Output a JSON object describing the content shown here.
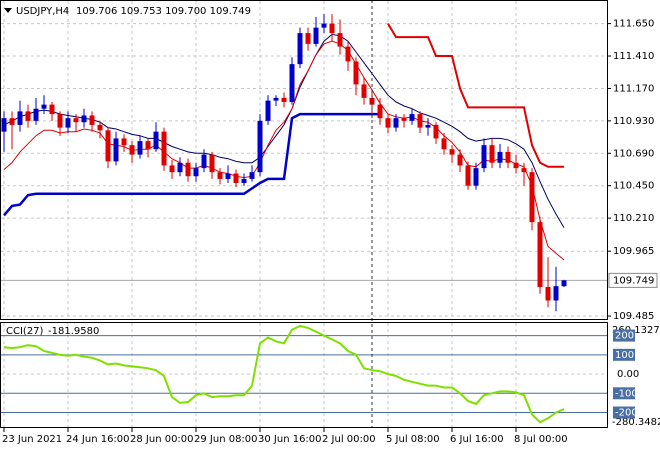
{
  "chart_data": {
    "type": "candlestick",
    "title": "USDJPY,H4",
    "ohlc_text": "109.706 109.753 109.700 109.749",
    "up_color": "#0000cc",
    "down_color": "#e00000",
    "grid": true,
    "categories": [
      "23 Jun 2021",
      null,
      null,
      null,
      null,
      null,
      null,
      null,
      "24 Jun 16:00",
      null,
      null,
      null,
      null,
      null,
      null,
      null,
      "28 Jun 00:00",
      null,
      null,
      null,
      null,
      null,
      null,
      null,
      "29 Jun 08:00",
      null,
      null,
      null,
      null,
      null,
      null,
      null,
      "30 Jun 16:00",
      null,
      null,
      null,
      null,
      null,
      null,
      null,
      "2 Jul 00:00",
      null,
      null,
      null,
      null,
      null,
      null,
      null,
      "5 Jul 08:00",
      null,
      null,
      null,
      null,
      null,
      null,
      null,
      "6 Jul 16:00",
      null,
      null,
      null,
      null,
      null,
      null,
      null,
      "8 Jul 00:00",
      null,
      null,
      null,
      null,
      null,
      null
    ],
    "ohlc": [
      [
        110.85,
        111.0,
        110.7,
        110.95
      ],
      [
        110.95,
        111.0,
        110.72,
        110.9
      ],
      [
        110.9,
        111.08,
        110.85,
        111.0
      ],
      [
        111.0,
        111.05,
        110.88,
        110.93
      ],
      [
        110.93,
        111.1,
        110.9,
        111.02
      ],
      [
        111.02,
        111.12,
        110.98,
        111.05
      ],
      [
        111.05,
        111.07,
        110.93,
        110.98
      ],
      [
        110.98,
        111.0,
        110.82,
        110.88
      ],
      [
        110.88,
        111.0,
        110.84,
        110.95
      ],
      [
        110.95,
        110.98,
        110.85,
        110.92
      ],
      [
        110.92,
        111.02,
        110.88,
        110.97
      ],
      [
        110.97,
        111.0,
        110.85,
        110.9
      ],
      [
        110.9,
        110.93,
        110.8,
        110.86
      ],
      [
        110.86,
        110.88,
        110.58,
        110.63
      ],
      [
        110.63,
        110.85,
        110.6,
        110.8
      ],
      [
        110.8,
        110.83,
        110.7,
        110.75
      ],
      [
        110.75,
        110.78,
        110.62,
        110.68
      ],
      [
        110.68,
        110.82,
        110.65,
        110.78
      ],
      [
        110.78,
        110.8,
        110.66,
        110.72
      ],
      [
        110.72,
        110.92,
        110.7,
        110.85
      ],
      [
        110.85,
        110.88,
        110.56,
        110.6
      ],
      [
        110.6,
        110.64,
        110.5,
        110.55
      ],
      [
        110.55,
        110.66,
        110.52,
        110.62
      ],
      [
        110.62,
        110.65,
        110.48,
        110.52
      ],
      [
        110.52,
        110.62,
        110.48,
        110.58
      ],
      [
        110.58,
        110.72,
        110.55,
        110.68
      ],
      [
        110.68,
        110.7,
        110.5,
        110.55
      ],
      [
        110.55,
        110.58,
        110.46,
        110.5
      ],
      [
        110.5,
        110.6,
        110.47,
        110.54
      ],
      [
        110.54,
        110.57,
        110.44,
        110.47
      ],
      [
        110.47,
        110.54,
        110.45,
        110.5
      ],
      [
        110.5,
        110.6,
        110.48,
        110.55
      ],
      [
        110.55,
        110.98,
        110.52,
        110.93
      ],
      [
        110.93,
        111.12,
        110.9,
        111.08
      ],
      [
        111.08,
        111.12,
        111.04,
        111.1
      ],
      [
        111.1,
        111.14,
        111.03,
        111.07
      ],
      [
        111.07,
        111.4,
        111.05,
        111.35
      ],
      [
        111.35,
        111.62,
        111.32,
        111.58
      ],
      [
        111.58,
        111.62,
        111.45,
        111.5
      ],
      [
        111.5,
        111.7,
        111.48,
        111.62
      ],
      [
        111.62,
        111.72,
        111.58,
        111.65
      ],
      [
        111.65,
        111.72,
        111.52,
        111.58
      ],
      [
        111.58,
        111.68,
        111.42,
        111.48
      ],
      [
        111.48,
        111.52,
        111.3,
        111.37
      ],
      [
        111.37,
        111.4,
        111.12,
        111.2
      ],
      [
        111.2,
        111.25,
        111.05,
        111.1
      ],
      [
        111.1,
        111.15,
        110.95,
        111.05
      ],
      [
        111.05,
        111.1,
        110.9,
        110.95
      ],
      [
        110.95,
        110.98,
        110.84,
        110.88
      ],
      [
        110.88,
        110.98,
        110.85,
        110.95
      ],
      [
        110.95,
        110.98,
        110.88,
        110.93
      ],
      [
        110.93,
        111.02,
        110.9,
        110.98
      ],
      [
        110.98,
        111.0,
        110.84,
        110.88
      ],
      [
        110.88,
        110.95,
        110.82,
        110.9
      ],
      [
        110.9,
        110.92,
        110.76,
        110.8
      ],
      [
        110.8,
        110.84,
        110.68,
        110.72
      ],
      [
        110.72,
        110.75,
        110.62,
        110.68
      ],
      [
        110.68,
        110.72,
        110.55,
        110.6
      ],
      [
        110.6,
        110.63,
        110.42,
        110.45
      ],
      [
        110.45,
        110.62,
        110.42,
        110.58
      ],
      [
        110.58,
        110.8,
        110.55,
        110.75
      ],
      [
        110.75,
        110.8,
        110.58,
        110.62
      ],
      [
        110.62,
        110.76,
        110.58,
        110.7
      ],
      [
        110.7,
        110.74,
        110.58,
        110.62
      ],
      [
        110.62,
        110.68,
        110.54,
        110.58
      ],
      [
        110.58,
        110.62,
        110.45,
        110.55
      ],
      [
        110.55,
        110.58,
        110.12,
        110.18
      ],
      [
        110.18,
        110.22,
        109.65,
        109.7
      ],
      [
        109.7,
        109.92,
        109.55,
        109.6
      ],
      [
        109.6,
        109.85,
        109.52,
        109.706
      ],
      [
        109.706,
        109.753,
        109.7,
        109.749
      ]
    ],
    "series": [
      {
        "color": "#0000cc",
        "width": 2.5,
        "values": [
          110.23,
          110.3,
          110.31,
          110.38,
          110.39,
          110.39,
          110.39,
          110.39,
          110.39,
          110.39,
          110.39,
          110.39,
          110.39,
          110.39,
          110.39,
          110.39,
          110.39,
          110.39,
          110.39,
          110.39,
          110.39,
          110.39,
          110.39,
          110.39,
          110.39,
          110.39,
          110.39,
          110.39,
          110.39,
          110.39,
          110.39,
          110.43,
          110.47,
          110.5,
          110.5,
          110.5,
          110.95,
          110.98,
          110.98,
          110.98,
          110.98,
          110.98,
          110.98,
          110.98,
          110.98,
          110.98,
          110.98,
          110.98,
          null,
          null,
          null,
          null,
          null,
          null,
          null,
          null,
          null,
          null,
          null,
          null,
          null,
          null,
          null,
          null,
          null,
          null,
          null,
          null,
          null,
          null,
          null
        ]
      },
      {
        "color": "#000066",
        "width": 1,
        "values": [
          110.9,
          110.93,
          110.96,
          110.98,
          111.0,
          111.01,
          111.0,
          110.98,
          110.97,
          110.96,
          110.95,
          110.94,
          110.92,
          110.88,
          110.87,
          110.85,
          110.83,
          110.82,
          110.8,
          110.8,
          110.77,
          110.74,
          110.72,
          110.7,
          110.69,
          110.69,
          110.68,
          110.66,
          110.65,
          110.63,
          110.62,
          110.62,
          110.66,
          110.74,
          110.82,
          110.9,
          111.02,
          111.18,
          111.3,
          111.42,
          111.52,
          111.57,
          111.56,
          111.52,
          111.44,
          111.36,
          111.28,
          111.2,
          111.12,
          111.07,
          111.04,
          111.02,
          110.99,
          110.97,
          110.95,
          110.92,
          110.89,
          110.85,
          110.8,
          110.78,
          110.79,
          110.8,
          110.8,
          110.79,
          110.76,
          110.72,
          110.62,
          110.48,
          110.35,
          110.24,
          110.14
        ]
      },
      {
        "color": "#e00000",
        "width": 1,
        "values": [
          110.57,
          110.62,
          110.7,
          110.76,
          110.82,
          110.86,
          110.86,
          110.84,
          110.85,
          110.85,
          110.87,
          110.86,
          110.84,
          110.76,
          110.75,
          110.74,
          110.71,
          110.72,
          110.72,
          110.75,
          110.7,
          110.65,
          110.62,
          110.58,
          110.58,
          110.6,
          110.58,
          110.55,
          110.54,
          110.52,
          110.51,
          110.52,
          110.62,
          110.75,
          110.86,
          110.92,
          111.02,
          111.2,
          111.3,
          111.42,
          111.5,
          111.52,
          111.5,
          111.45,
          111.35,
          111.25,
          111.16,
          111.06,
          110.98,
          110.96,
          110.95,
          110.96,
          110.93,
          110.92,
          110.88,
          110.82,
          110.77,
          110.7,
          110.6,
          110.59,
          110.64,
          110.63,
          110.65,
          110.64,
          110.61,
          110.59,
          110.45,
          110.2,
          110.0,
          109.95,
          109.9
        ]
      },
      {
        "color": "#e00000",
        "width": 2,
        "values": [
          null,
          null,
          null,
          null,
          null,
          null,
          null,
          null,
          null,
          null,
          null,
          null,
          null,
          null,
          null,
          null,
          null,
          null,
          null,
          null,
          null,
          null,
          null,
          null,
          null,
          null,
          null,
          null,
          null,
          null,
          null,
          null,
          null,
          null,
          null,
          null,
          null,
          null,
          null,
          null,
          null,
          null,
          null,
          null,
          null,
          null,
          null,
          null,
          111.65,
          111.55,
          111.55,
          111.55,
          111.55,
          111.55,
          111.41,
          111.41,
          111.41,
          111.17,
          111.03,
          111.03,
          111.03,
          111.03,
          111.03,
          111.03,
          111.03,
          111.03,
          110.75,
          110.62,
          110.59,
          110.59,
          110.59
        ]
      }
    ],
    "ylim": [
      109.463,
      111.81
    ],
    "yticks": [
      {
        "value": 111.65,
        "label": "111.650"
      },
      {
        "value": 111.41,
        "label": "111.410"
      },
      {
        "value": 111.17,
        "label": "111.170"
      },
      {
        "value": 110.93,
        "label": "110.930"
      },
      {
        "value": 110.69,
        "label": "110.690"
      },
      {
        "value": 110.45,
        "label": "110.450"
      },
      {
        "value": 110.21,
        "label": "110.210"
      },
      109.965,
      109.485
    ],
    "cci": {
      "name": "CCI(27)",
      "color": "#7fe000",
      "values": [
        140,
        135,
        140,
        150,
        145,
        120,
        110,
        100,
        95,
        100,
        90,
        85,
        70,
        50,
        55,
        45,
        40,
        35,
        30,
        20,
        -10,
        -120,
        -150,
        -145,
        -110,
        -100,
        -120,
        -115,
        -115,
        -110,
        -110,
        -60,
        160,
        190,
        170,
        160,
        230,
        250,
        240,
        220,
        200,
        180,
        160,
        120,
        100,
        30,
        20,
        15,
        0,
        -10,
        -30,
        -40,
        -50,
        -60,
        -60,
        -70,
        -70,
        -100,
        -140,
        -155,
        -110,
        -100,
        -90,
        -90,
        -95,
        -110,
        -210,
        -250,
        -230,
        -200,
        -181.958
      ],
      "value_labels": [
        null,
        null,
        null,
        null,
        null,
        null,
        null,
        null,
        null,
        null,
        null,
        null,
        null,
        null,
        null,
        null,
        null,
        null,
        null,
        null,
        null,
        null,
        null,
        null,
        null,
        null,
        null,
        null,
        null,
        null,
        null,
        null,
        null,
        null,
        null,
        null,
        null,
        null,
        null,
        null,
        null,
        null,
        null,
        null,
        null,
        null,
        null,
        null,
        null,
        null,
        null,
        null,
        null,
        null,
        null,
        null,
        null,
        null,
        null,
        null,
        null,
        null,
        null,
        null,
        null,
        null,
        null,
        null,
        null,
        null,
        "-181.9580"
      ],
      "ylim": [
        -280.3482,
        260.1327
      ],
      "yticks": [
        200,
        100,
        {
          "value": 0,
          "label": "0.00"
        },
        -100,
        -200
      ],
      "levels_color": "#4a6fa5"
    }
  }
}
